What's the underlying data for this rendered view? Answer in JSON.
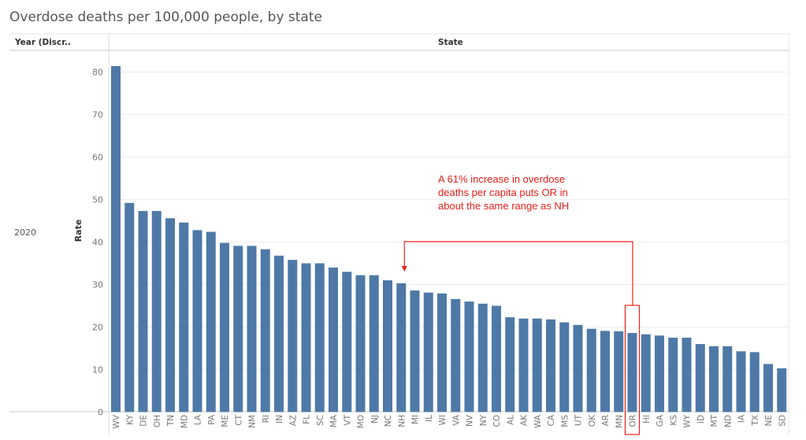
{
  "title": "Overdose deaths per 100,000 people, by state",
  "header": {
    "row_field": "Year (Discr..",
    "col_field": "State"
  },
  "row_value": "2020",
  "colors": {
    "bar": "#4e79a7",
    "annotation": "#e8201a",
    "grid": "#eeeeee",
    "axis_text": "#777777"
  },
  "annotation": {
    "lines": [
      "A 61% increase in overdose",
      "deaths per capita puts OR in",
      "about the same range as NH"
    ],
    "highlight_category": "OR",
    "arrow_target_category": "NH"
  },
  "chart_data": {
    "type": "bar",
    "title": "Overdose deaths per 100,000 people, by state",
    "xlabel": "State",
    "ylabel": "Rate",
    "ylim": [
      0,
      82
    ],
    "yticks": [
      0,
      10,
      20,
      30,
      40,
      50,
      60,
      70,
      80
    ],
    "grid": true,
    "categories": [
      "WV",
      "KY",
      "DE",
      "OH",
      "TN",
      "MD",
      "LA",
      "PA",
      "ME",
      "CT",
      "NM",
      "RI",
      "IN",
      "AZ",
      "FL",
      "SC",
      "MA",
      "VT",
      "MO",
      "NJ",
      "NC",
      "NH",
      "MI",
      "IL",
      "WI",
      "VA",
      "NV",
      "NY",
      "CO",
      "AL",
      "AK",
      "WA",
      "CA",
      "MS",
      "UT",
      "OK",
      "AR",
      "MN",
      "OR",
      "HI",
      "GA",
      "KS",
      "WY",
      "ID",
      "MT",
      "ND",
      "IA",
      "TX",
      "NE",
      "SD"
    ],
    "values": [
      81.4,
      49.2,
      47.3,
      47.3,
      45.6,
      44.6,
      42.8,
      42.4,
      39.8,
      39.1,
      39.1,
      38.3,
      36.8,
      35.8,
      35.0,
      35.0,
      34.0,
      33.0,
      32.2,
      32.2,
      31.0,
      30.3,
      28.6,
      28.1,
      27.9,
      26.6,
      26.0,
      25.5,
      25.0,
      22.3,
      22.0,
      22.0,
      21.8,
      21.1,
      20.5,
      19.6,
      19.1,
      19.0,
      18.6,
      18.3,
      18.0,
      17.5,
      17.5,
      16.0,
      15.5,
      15.5,
      14.3,
      14.1,
      11.3,
      10.3
    ]
  }
}
